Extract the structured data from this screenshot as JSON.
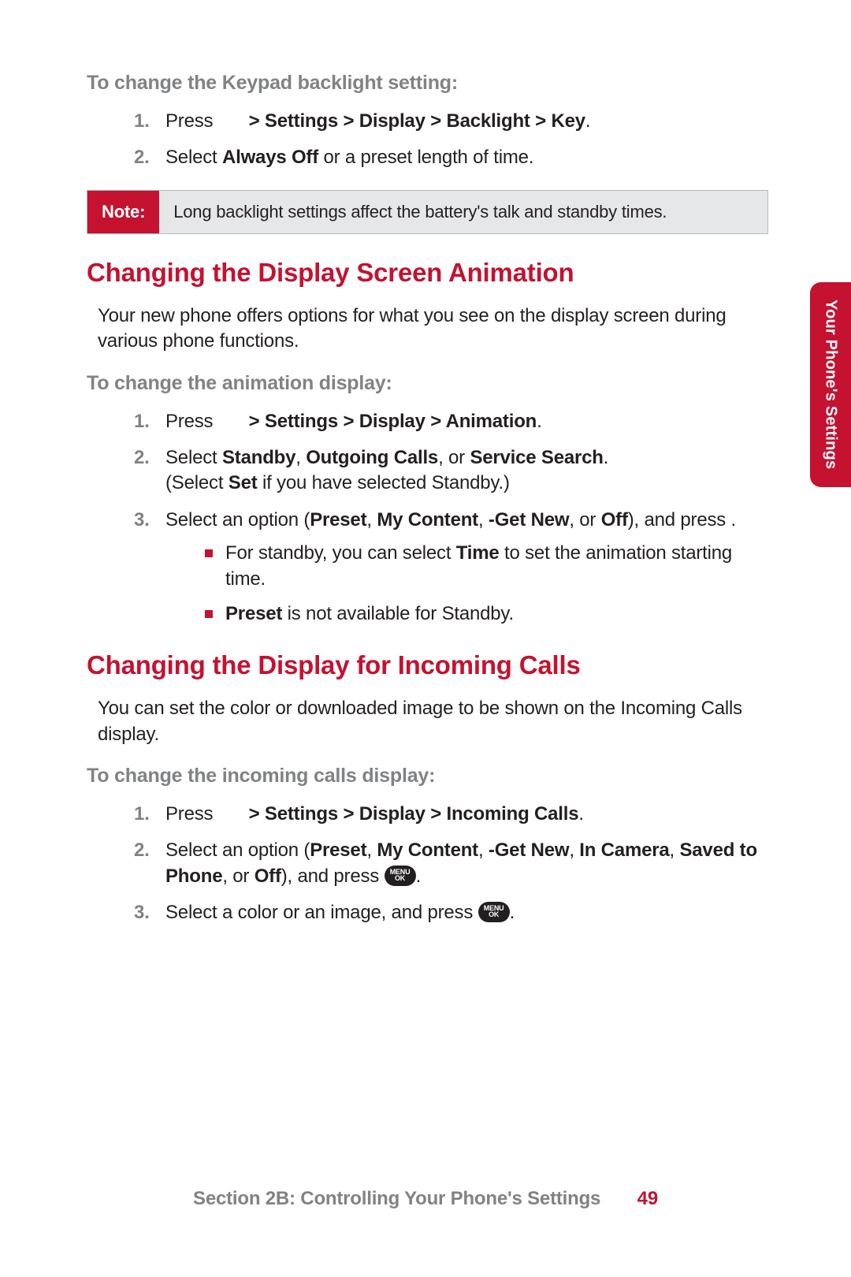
{
  "colors": {
    "accent": "#c41230",
    "gray_text": "#808284",
    "body_text": "#231f20",
    "note_bg": "#e6e7e8",
    "note_border": "#b7b8ba",
    "page_bg": "#ffffff"
  },
  "side_tab": "Your Phone's Settings",
  "keypad": {
    "subhead": "To change the Keypad backlight setting:",
    "step1_pre": "Press",
    "step1_bold": " > Settings > Display > Backlight > Key",
    "step1_post": ".",
    "step2_pre": "Select ",
    "step2_bold": "Always Off",
    "step2_post": " or a preset length of time."
  },
  "note": {
    "label": "Note:",
    "body": "Long backlight settings affect the battery's talk and standby times."
  },
  "animation": {
    "heading": "Changing the Display Screen Animation",
    "intro": "Your new phone offers options for what you see on the display screen during various phone functions.",
    "subhead": "To change the animation display:",
    "step1_pre": "Press",
    "step1_bold": " > Settings > Display > Animation",
    "step1_post": ".",
    "step2_pre": "Select ",
    "step2_b1": "Standby",
    "step2_mid1": ", ",
    "step2_b2": "Outgoing Calls",
    "step2_mid2": ", or ",
    "step2_b3": "Service Search",
    "step2_post": ".",
    "step2_line2_pre": "(Select ",
    "step2_line2_b": "Set",
    "step2_line2_post": " if you have selected Standby.)",
    "step3_pre": "Select an option (",
    "step3_b1": "Preset",
    "step3_m1": ", ",
    "step3_b2": "My Content",
    "step3_m2": ", ",
    "step3_b3": "-Get New",
    "step3_m3": ", or ",
    "step3_b4": "Off",
    "step3_post": "), and press      .",
    "sub1_pre": "For standby, you can select ",
    "sub1_b": "Time",
    "sub1_post": " to set the animation starting time.",
    "sub2_b": "Preset",
    "sub2_post": " is not available for Standby."
  },
  "incoming": {
    "heading": "Changing the Display for Incoming Calls",
    "intro": "You can set the color or downloaded image to be shown on the Incoming Calls display.",
    "subhead": "To change the incoming calls display:",
    "step1_pre": "Press",
    "step1_bold": " > Settings > Display > Incoming Calls",
    "step1_post": ".",
    "step2_pre": "Select an option (",
    "step2_b1": "Preset",
    "step2_m1": ", ",
    "step2_b2": "My Content",
    "step2_m2": ", ",
    "step2_b3": "-Get New",
    "step2_m3": ", ",
    "step2_b4": "In Camera",
    "step2_m4": ", ",
    "step2_b5": "Saved to Phone",
    "step2_m5": ", or ",
    "step2_b6": "Off",
    "step2_post": "), and press ",
    "step2_end": ".",
    "step3_pre": "Select a color or an image, and press ",
    "step3_end": "."
  },
  "menu_btn_text": "MENU\nOK",
  "footer": {
    "section": "Section 2B: Controlling Your Phone's Settings",
    "page": "49"
  }
}
